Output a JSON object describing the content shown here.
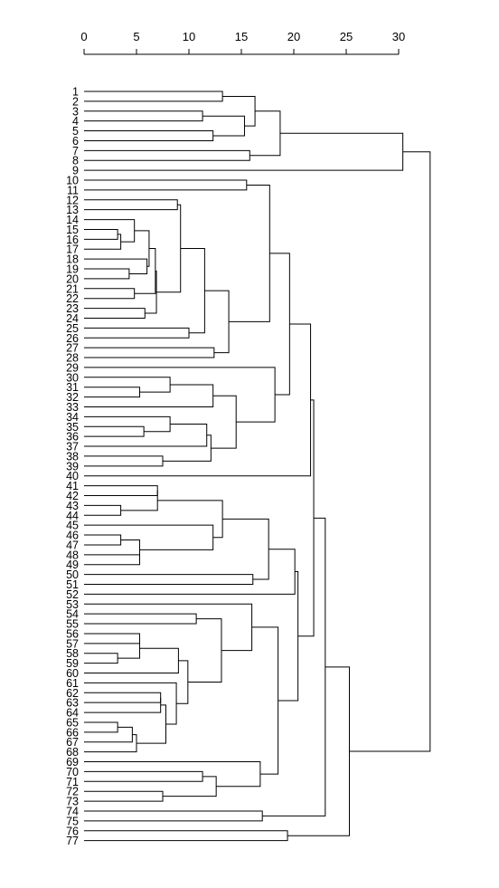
{
  "chart_data": {
    "type": "dendrogram",
    "orientation": "horizontal",
    "x_axis": {
      "position": "top",
      "range": [
        0,
        30
      ],
      "ticks": [
        0,
        5,
        10,
        15,
        20,
        25,
        30
      ]
    },
    "leaves": [
      1,
      2,
      3,
      4,
      5,
      6,
      7,
      8,
      9,
      10,
      11,
      12,
      13,
      14,
      15,
      16,
      17,
      18,
      19,
      20,
      21,
      22,
      23,
      24,
      25,
      26,
      27,
      28,
      29,
      30,
      31,
      32,
      33,
      34,
      35,
      36,
      37,
      38,
      39,
      40,
      41,
      42,
      43,
      44,
      45,
      46,
      47,
      48,
      49,
      50,
      51,
      52,
      53,
      54,
      55,
      56,
      57,
      58,
      59,
      60,
      61,
      62,
      63,
      64,
      65,
      66,
      67,
      68,
      69,
      70,
      71,
      72,
      73,
      74,
      75,
      76,
      77
    ],
    "merges": [
      {
        "a": 15,
        "b": 16,
        "height": 3.2
      },
      {
        "a": "15,16",
        "b": 17,
        "height": 3.5
      },
      {
        "a": 14,
        "b": "15,16,17",
        "height": 4.8
      },
      {
        "a": 19,
        "b": 20,
        "height": 4.3
      },
      {
        "a": 18,
        "b": "19,20",
        "height": 6.0
      },
      {
        "a": "14-17",
        "b": "18-20",
        "height": 6.2
      },
      {
        "a": 21,
        "b": 22,
        "height": 4.8
      },
      {
        "a": "14-20",
        "b": "21,22",
        "height": 6.8
      },
      {
        "a": 23,
        "b": 24,
        "height": 5.8
      },
      {
        "a": "14-22",
        "b": "23,24",
        "height": 6.9
      },
      {
        "a": 12,
        "b": 13,
        "height": 8.9
      },
      {
        "a": "12,13",
        "b": "14-24",
        "height": 9.2
      },
      {
        "a": 25,
        "b": 26,
        "height": 10.0
      },
      {
        "a": "12-24",
        "b": "25,26",
        "height": 11.5
      },
      {
        "a": 27,
        "b": 28,
        "height": 12.4
      },
      {
        "a": "12-26",
        "b": "27,28",
        "height": 13.8
      },
      {
        "a": 10,
        "b": 11,
        "height": 15.5
      },
      {
        "a": "10,11",
        "b": "12-28",
        "height": 17.7
      },
      {
        "a": 31,
        "b": 32,
        "height": 5.3
      },
      {
        "a": 30,
        "b": "31,32",
        "height": 8.2
      },
      {
        "a": "30-32",
        "b": 33,
        "height": 12.3
      },
      {
        "a": 35,
        "b": 36,
        "height": 5.7
      },
      {
        "a": 34,
        "b": "35,36",
        "height": 8.2
      },
      {
        "a": "34-36",
        "b": 37,
        "height": 11.7
      },
      {
        "a": 38,
        "b": 39,
        "height": 7.5
      },
      {
        "a": "34-37",
        "b": "38,39",
        "height": 12.1
      },
      {
        "a": "30-33",
        "b": "34-39",
        "height": 14.5
      },
      {
        "a": 29,
        "b": "30-39",
        "height": 18.2
      },
      {
        "a": "10-28",
        "b": "29-39",
        "height": 19.6
      },
      {
        "a": "10-39",
        "b": 40,
        "height": 21.6
      },
      {
        "a": 43,
        "b": 44,
        "height": 3.5
      },
      {
        "a": 41,
        "b": 42,
        "height": 7.0
      },
      {
        "a": "41,42",
        "b": "43,44",
        "height": 7.0
      },
      {
        "a": 46,
        "b": 47,
        "height": 3.5
      },
      {
        "a": 48,
        "b": 49,
        "height": 5.3
      },
      {
        "a": "46,47",
        "b": "48,49",
        "height": 5.3
      },
      {
        "a": 45,
        "b": "46-49",
        "height": 12.3
      },
      {
        "a": "41-44",
        "b": "45-49",
        "height": 13.2
      },
      {
        "a": 50,
        "b": 51,
        "height": 16.1
      },
      {
        "a": "41-49",
        "b": "50,51",
        "height": 17.6
      },
      {
        "a": "41-51",
        "b": 52,
        "height": 20.1
      },
      {
        "a": 58,
        "b": 59,
        "height": 3.2
      },
      {
        "a": 56,
        "b": 57,
        "height": 5.3
      },
      {
        "a": "56,57",
        "b": "58,59",
        "height": 5.3
      },
      {
        "a": "56-59",
        "b": 60,
        "height": 9.0
      },
      {
        "a": 65,
        "b": 66,
        "height": 3.2
      },
      {
        "a": "65,66",
        "b": 67,
        "height": 4.6
      },
      {
        "a": "65-67",
        "b": 68,
        "height": 5.0
      },
      {
        "a": 62,
        "b": 63,
        "height": 7.3
      },
      {
        "a": "62,63",
        "b": 64,
        "height": 7.3
      },
      {
        "a": "62-64",
        "b": "65-68",
        "height": 7.8
      },
      {
        "a": 61,
        "b": "62-68",
        "height": 8.8
      },
      {
        "a": "56-60",
        "b": "61-68",
        "height": 9.9
      },
      {
        "a": 54,
        "b": 55,
        "height": 10.7
      },
      {
        "a": "54,55",
        "b": "56-68",
        "height": 13.1
      },
      {
        "a": 53,
        "b": "54-68",
        "height": 16.0
      },
      {
        "a": 70,
        "b": 71,
        "height": 11.3
      },
      {
        "a": 72,
        "b": 73,
        "height": 7.5
      },
      {
        "a": "70,71",
        "b": "72,73",
        "height": 12.6
      },
      {
        "a": 69,
        "b": "70-73",
        "height": 16.8
      },
      {
        "a": "53-68",
        "b": "69-73",
        "height": 18.5
      },
      {
        "a": "41-52",
        "b": "53-73",
        "height": 20.4
      },
      {
        "a": "10-40",
        "b": "41-73",
        "height": 21.9
      },
      {
        "a": 74,
        "b": 75,
        "height": 17.0
      },
      {
        "a": "10-73",
        "b": "74,75",
        "height": 23.0
      },
      {
        "a": 76,
        "b": 77,
        "height": 19.4
      },
      {
        "a": "10-75",
        "b": "76,77",
        "height": 25.3
      },
      {
        "a": 1,
        "b": 2,
        "height": 13.2
      },
      {
        "a": 3,
        "b": 4,
        "height": 11.3
      },
      {
        "a": 5,
        "b": 6,
        "height": 12.3
      },
      {
        "a": "3,4",
        "b": "5,6",
        "height": 15.3
      },
      {
        "a": "1,2",
        "b": "3-6",
        "height": 16.3
      },
      {
        "a": 7,
        "b": 8,
        "height": 15.8
      },
      {
        "a": "1-6",
        "b": "7,8",
        "height": 18.7
      },
      {
        "a": "1-8",
        "b": 9,
        "height": 30.4
      },
      {
        "a": "1-9",
        "b": "10-77",
        "height": 33.0
      }
    ]
  }
}
